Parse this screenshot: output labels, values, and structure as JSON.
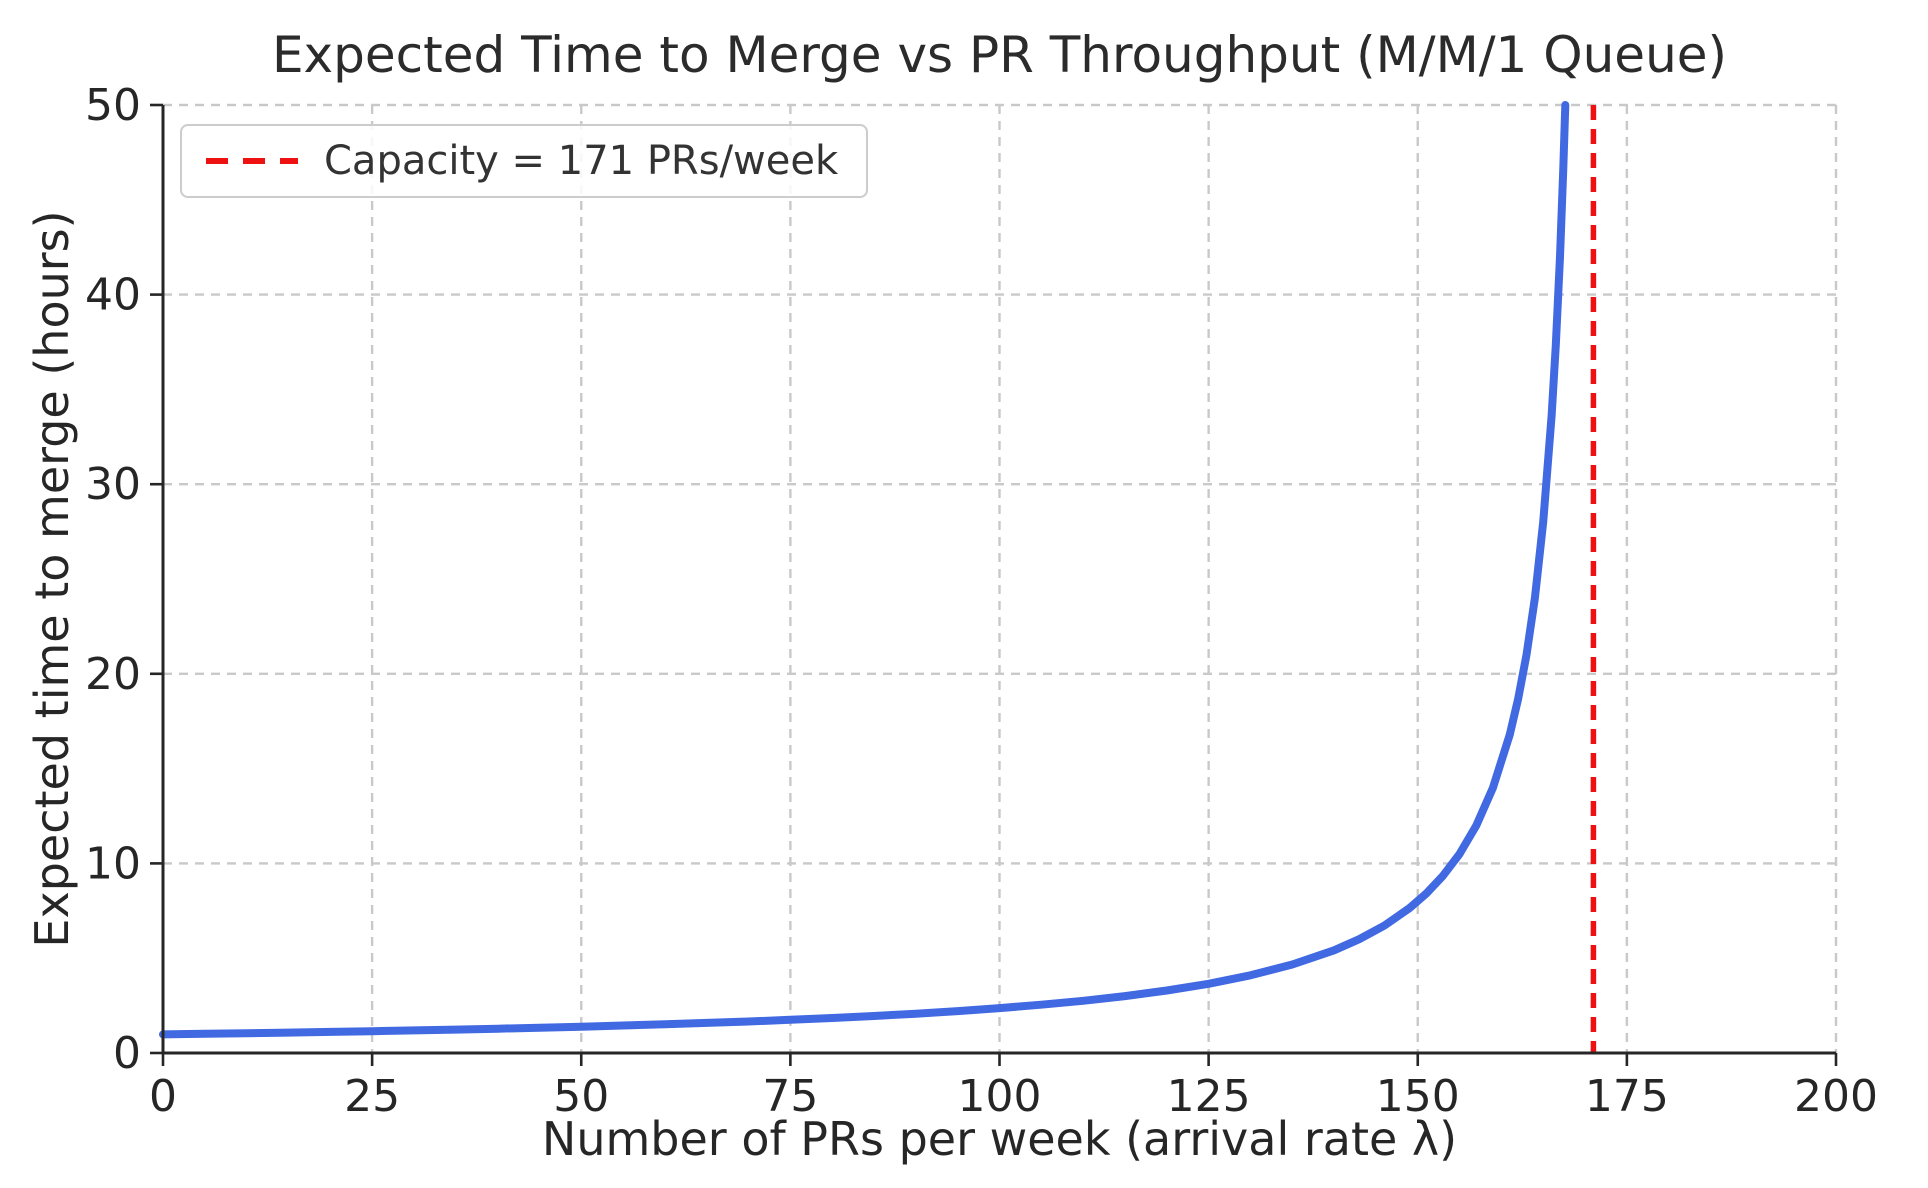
{
  "title": "Expected Time to Merge vs PR Throughput (M/M/1 Queue)",
  "legend": {
    "label": "Capacity = 171 PRs/week"
  },
  "colors": {
    "curve": "#4169e1",
    "capacity_line": "#ee1111",
    "grid": "#c9c9c9",
    "spine": "#262626",
    "tick_text": "#262626",
    "title_text": "#2b2b2b",
    "legend_border": "#cccccc"
  },
  "chart_data": {
    "type": "line",
    "title": "Expected Time to Merge vs PR Throughput (M/M/1 Queue)",
    "xlabel": "Number of PRs per week (arrival rate λ)",
    "ylabel": "Expected time to merge (hours)",
    "xlim": [
      0,
      200
    ],
    "ylim": [
      0,
      50
    ],
    "xticks": [
      0,
      25,
      50,
      75,
      100,
      125,
      150,
      175,
      200
    ],
    "yticks": [
      0,
      10,
      20,
      30,
      40,
      50
    ],
    "grid": "dashed",
    "legend_position": "upper left",
    "capacity_x": 171,
    "series": [
      {
        "name": "expected-time-to-merge",
        "color": "#4169e1",
        "style": "solid",
        "points": [
          [
            0,
            0.982
          ],
          [
            5,
            1.012
          ],
          [
            10,
            1.043
          ],
          [
            15,
            1.077
          ],
          [
            20,
            1.113
          ],
          [
            25,
            1.151
          ],
          [
            30,
            1.191
          ],
          [
            35,
            1.235
          ],
          [
            40,
            1.282
          ],
          [
            45,
            1.333
          ],
          [
            50,
            1.388
          ],
          [
            55,
            1.448
          ],
          [
            60,
            1.514
          ],
          [
            65,
            1.585
          ],
          [
            70,
            1.663
          ],
          [
            75,
            1.75
          ],
          [
            80,
            1.846
          ],
          [
            85,
            1.953
          ],
          [
            90,
            2.074
          ],
          [
            95,
            2.211
          ],
          [
            100,
            2.366
          ],
          [
            105,
            2.545
          ],
          [
            110,
            2.754
          ],
          [
            115,
            3.0
          ],
          [
            120,
            3.294
          ],
          [
            125,
            3.652
          ],
          [
            130,
            4.098
          ],
          [
            135,
            4.667
          ],
          [
            140,
            5.419
          ],
          [
            143,
            6.0
          ],
          [
            146,
            6.72
          ],
          [
            149,
            7.636
          ],
          [
            151,
            8.4
          ],
          [
            153,
            9.333
          ],
          [
            155,
            10.5
          ],
          [
            157,
            12.0
          ],
          [
            159,
            14.0
          ],
          [
            161,
            16.8
          ],
          [
            162,
            18.667
          ],
          [
            163,
            21.0
          ],
          [
            164,
            24.0
          ],
          [
            165,
            28.0
          ],
          [
            166,
            33.6
          ],
          [
            166.5,
            37.333
          ],
          [
            167,
            42.0
          ],
          [
            167.4,
            46.667
          ],
          [
            167.64,
            50.0
          ]
        ]
      },
      {
        "name": "capacity-vline",
        "color": "#ee1111",
        "style": "dashed",
        "vline_x": 171,
        "label": "Capacity = 171 PRs/week"
      }
    ]
  }
}
